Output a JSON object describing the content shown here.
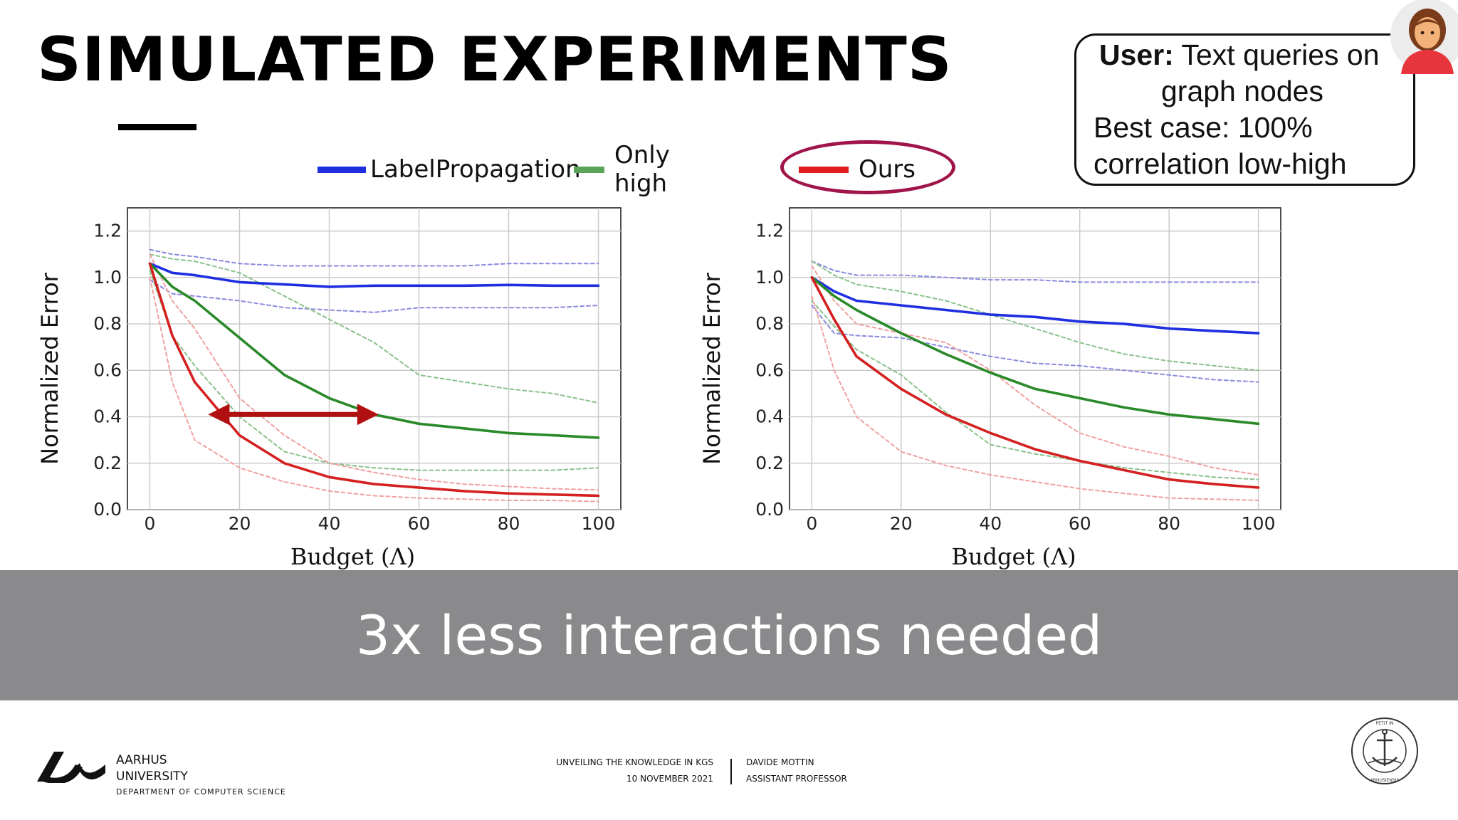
{
  "slide": {
    "title": "SIMULATED EXPERIMENTS",
    "banner_text": "3x less interactions needed"
  },
  "legend": {
    "items": [
      {
        "label": "LabelPropagation",
        "color": "#1f2fe0"
      },
      {
        "label": "Only high",
        "color": "#5aa55a"
      },
      {
        "label": "Ours",
        "color": "#e01c1c"
      }
    ]
  },
  "user_box": {
    "bold_prefix": "User:",
    "line1_rest": " Text queries on",
    "line2": "graph nodes",
    "line3": "Best case: 100%",
    "line4": "correlation low-high"
  },
  "footer": {
    "university_line1": "AARHUS",
    "university_line2": "UNIVERSITY",
    "department": "DEPARTMENT OF COMPUTER SCIENCE",
    "talk_title": "UNVEILING THE KNOWLEDGE IN KGS",
    "date": "10 NOVEMBER 2021",
    "speaker": "DAVIDE MOTTIN",
    "speaker_role": "ASSISTANT PROFESSOR",
    "seal_text": "SOLIDUM PETIT IN PROFUNDIS · UNIVERSITAS ARHUSIENSIS"
  },
  "chart_data": [
    {
      "type": "line",
      "xlabel": "Budget (Λ)",
      "ylabel": "Normalized Error",
      "xlim": [
        -5,
        105
      ],
      "ylim": [
        0,
        1.3
      ],
      "xticks": [
        0,
        20,
        40,
        60,
        80,
        100
      ],
      "yticks": [
        0.0,
        0.2,
        0.4,
        0.6,
        0.8,
        1.0,
        1.2
      ],
      "grid": true,
      "x": [
        0,
        5,
        10,
        20,
        30,
        40,
        50,
        60,
        70,
        80,
        90,
        100
      ],
      "series": [
        {
          "name": "LabelPropagation",
          "color": "#1f2fe0",
          "values": [
            1.06,
            1.02,
            1.01,
            0.98,
            0.97,
            0.96,
            0.965,
            0.965,
            0.965,
            0.968,
            0.965,
            0.965
          ]
        },
        {
          "name": "LabelPropagation upper",
          "color": "#8a8ae0",
          "dashed": true,
          "values": [
            1.12,
            1.1,
            1.09,
            1.06,
            1.05,
            1.05,
            1.05,
            1.05,
            1.05,
            1.06,
            1.06,
            1.06
          ]
        },
        {
          "name": "LabelPropagation lower",
          "color": "#8a8ae0",
          "dashed": true,
          "values": [
            0.99,
            0.93,
            0.92,
            0.9,
            0.87,
            0.86,
            0.85,
            0.87,
            0.87,
            0.87,
            0.87,
            0.88
          ]
        },
        {
          "name": "Only high",
          "color": "#2a8a2a",
          "values": [
            1.06,
            0.96,
            0.9,
            0.74,
            0.58,
            0.48,
            0.41,
            0.37,
            0.35,
            0.33,
            0.32,
            0.31
          ]
        },
        {
          "name": "Only high upper",
          "color": "#8ac08a",
          "dashed": true,
          "values": [
            1.1,
            1.08,
            1.07,
            1.02,
            0.92,
            0.82,
            0.72,
            0.58,
            0.55,
            0.52,
            0.5,
            0.46
          ]
        },
        {
          "name": "Only high lower",
          "color": "#8ac08a",
          "dashed": true,
          "values": [
            1.03,
            0.75,
            0.62,
            0.4,
            0.25,
            0.2,
            0.18,
            0.17,
            0.17,
            0.17,
            0.17,
            0.18
          ]
        },
        {
          "name": "Ours",
          "color": "#d42020",
          "values": [
            1.06,
            0.75,
            0.55,
            0.32,
            0.2,
            0.14,
            0.11,
            0.095,
            0.08,
            0.07,
            0.065,
            0.06
          ]
        },
        {
          "name": "Ours upper",
          "color": "#f0a0a0",
          "dashed": true,
          "values": [
            1.1,
            0.9,
            0.78,
            0.48,
            0.32,
            0.2,
            0.16,
            0.13,
            0.11,
            0.1,
            0.09,
            0.085
          ]
        },
        {
          "name": "Ours lower",
          "color": "#f0a0a0",
          "dashed": true,
          "values": [
            1.0,
            0.55,
            0.3,
            0.18,
            0.12,
            0.08,
            0.06,
            0.05,
            0.045,
            0.04,
            0.04,
            0.035
          ]
        }
      ],
      "annotations": [
        {
          "type": "double-arrow",
          "from": [
            13,
            0.41
          ],
          "to": [
            51,
            0.41
          ],
          "color": "#b01010"
        }
      ]
    },
    {
      "type": "line",
      "xlabel": "Budget (Λ)",
      "ylabel": "Normalized Error",
      "xlim": [
        -5,
        105
      ],
      "ylim": [
        0,
        1.3
      ],
      "xticks": [
        0,
        20,
        40,
        60,
        80,
        100
      ],
      "yticks": [
        0.0,
        0.2,
        0.4,
        0.6,
        0.8,
        1.0,
        1.2
      ],
      "grid": true,
      "x": [
        0,
        5,
        10,
        20,
        30,
        40,
        50,
        60,
        70,
        80,
        90,
        100
      ],
      "series": [
        {
          "name": "LabelPropagation",
          "color": "#1f2fe0",
          "values": [
            1.0,
            0.94,
            0.9,
            0.88,
            0.86,
            0.84,
            0.83,
            0.81,
            0.8,
            0.78,
            0.77,
            0.76
          ]
        },
        {
          "name": "LabelPropagation upper",
          "color": "#8a8ae0",
          "dashed": true,
          "values": [
            1.07,
            1.03,
            1.01,
            1.01,
            1.0,
            0.99,
            0.99,
            0.98,
            0.98,
            0.98,
            0.98,
            0.98
          ]
        },
        {
          "name": "LabelPropagation lower",
          "color": "#8a8ae0",
          "dashed": true,
          "values": [
            0.88,
            0.76,
            0.75,
            0.74,
            0.7,
            0.66,
            0.63,
            0.62,
            0.6,
            0.58,
            0.56,
            0.55
          ]
        },
        {
          "name": "Only high",
          "color": "#2a8a2a",
          "values": [
            1.0,
            0.92,
            0.86,
            0.76,
            0.67,
            0.59,
            0.52,
            0.48,
            0.44,
            0.41,
            0.39,
            0.37
          ]
        },
        {
          "name": "Only high upper",
          "color": "#8ac08a",
          "dashed": true,
          "values": [
            1.07,
            1.01,
            0.97,
            0.94,
            0.9,
            0.84,
            0.78,
            0.72,
            0.67,
            0.64,
            0.62,
            0.6
          ]
        },
        {
          "name": "Only high lower",
          "color": "#8ac08a",
          "dashed": true,
          "values": [
            0.9,
            0.79,
            0.69,
            0.58,
            0.42,
            0.28,
            0.24,
            0.21,
            0.18,
            0.16,
            0.14,
            0.13
          ]
        },
        {
          "name": "Ours",
          "color": "#d42020",
          "values": [
            1.0,
            0.82,
            0.66,
            0.52,
            0.41,
            0.33,
            0.26,
            0.21,
            0.17,
            0.13,
            0.11,
            0.095
          ]
        },
        {
          "name": "Ours upper",
          "color": "#f0a0a0",
          "dashed": true,
          "values": [
            1.05,
            0.9,
            0.8,
            0.76,
            0.72,
            0.6,
            0.45,
            0.33,
            0.27,
            0.23,
            0.18,
            0.15
          ]
        },
        {
          "name": "Ours lower",
          "color": "#f0a0a0",
          "dashed": true,
          "values": [
            0.92,
            0.6,
            0.4,
            0.25,
            0.19,
            0.15,
            0.12,
            0.09,
            0.07,
            0.05,
            0.045,
            0.04
          ]
        }
      ]
    }
  ]
}
